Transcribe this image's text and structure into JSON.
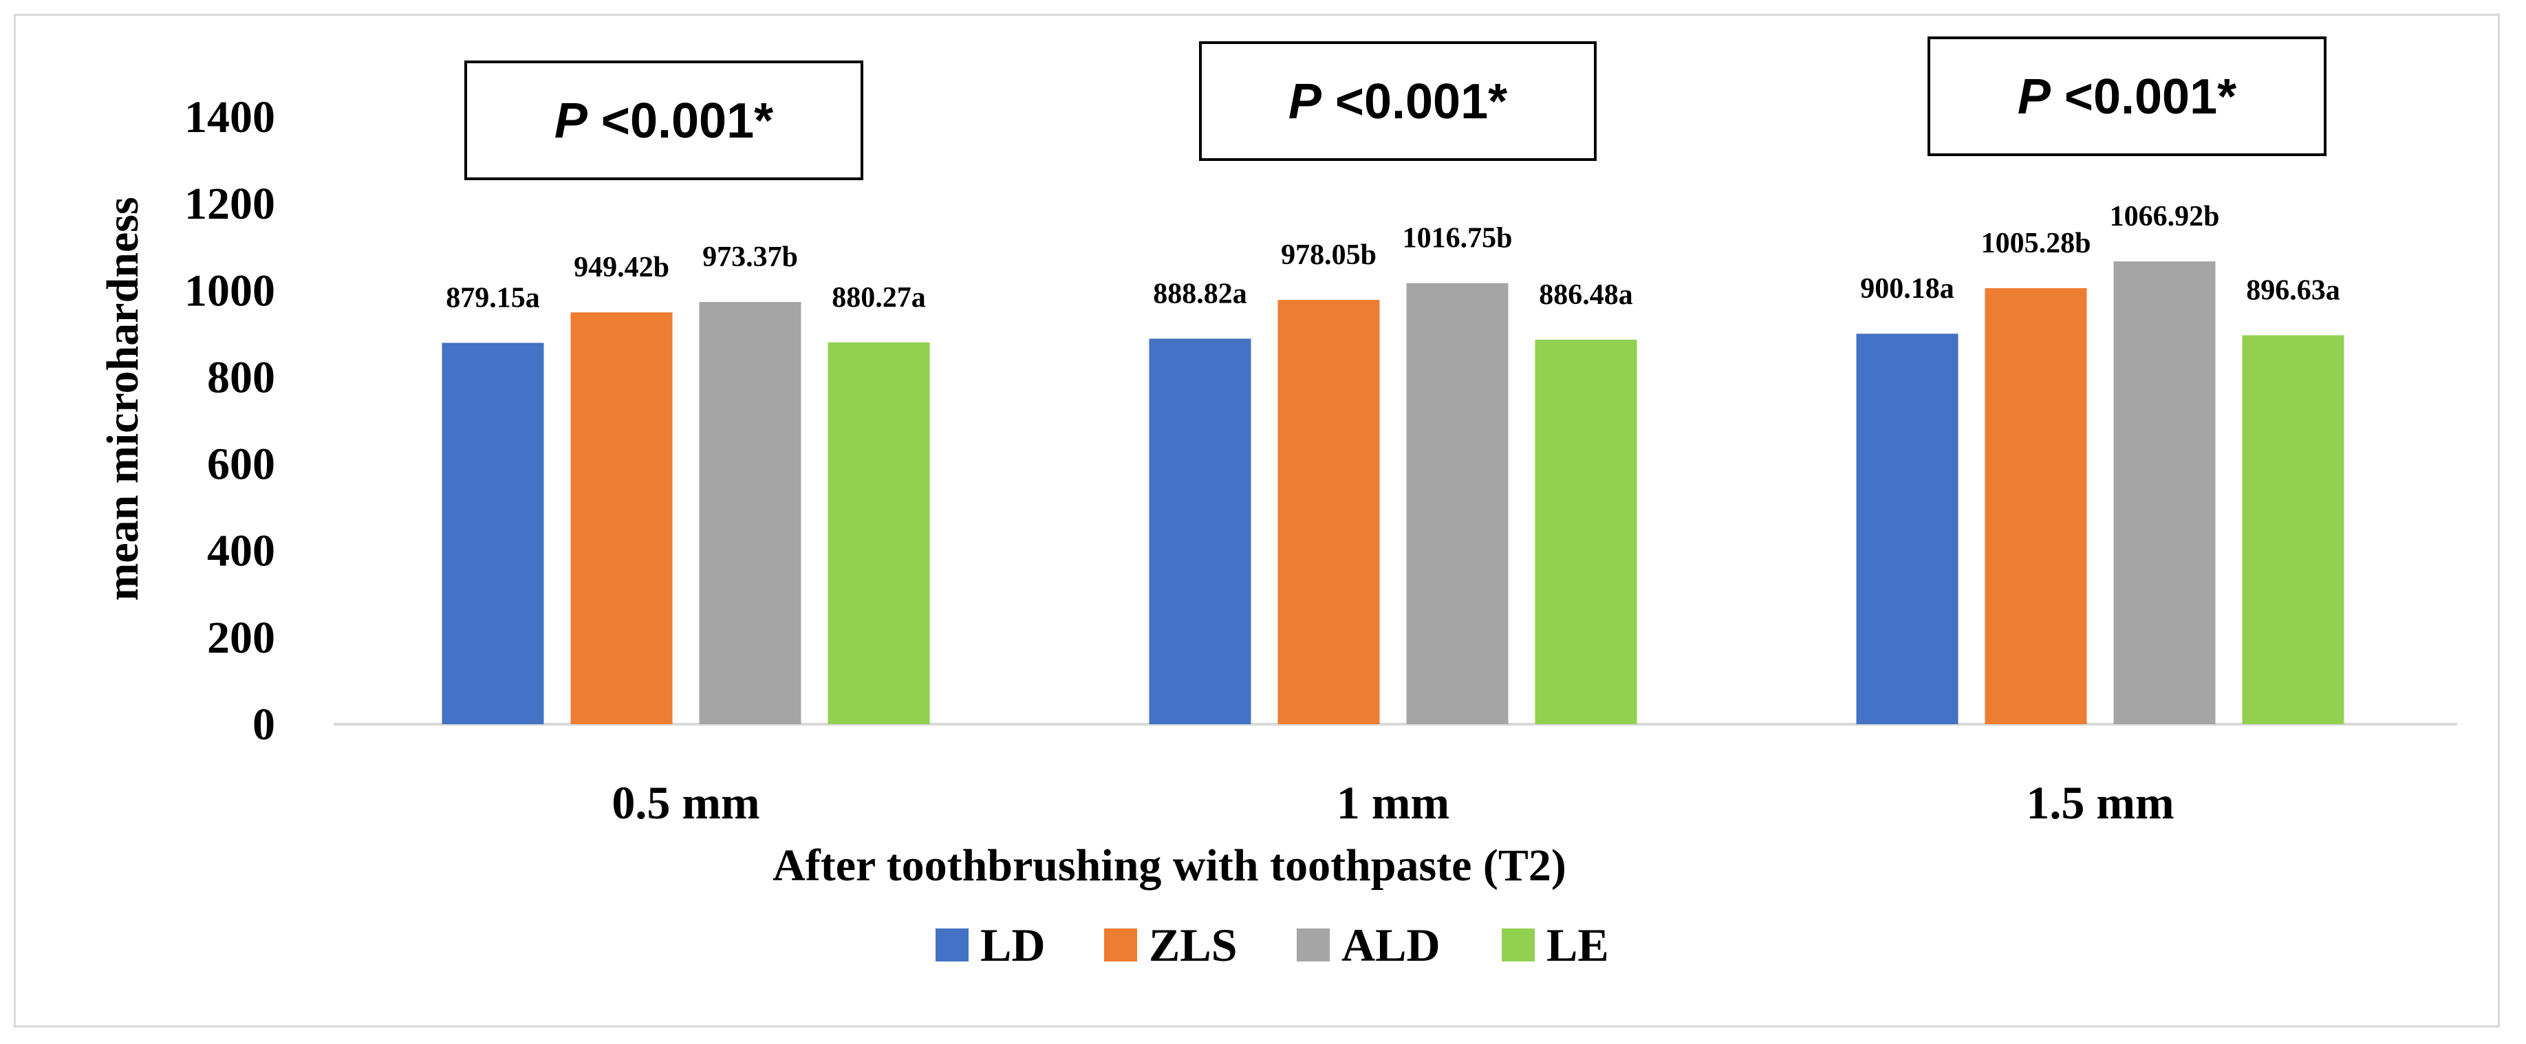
{
  "chart_data": {
    "type": "bar",
    "title": "",
    "xlabel": "After toothbrushing with toothpaste (T2)",
    "ylabel": "mean microhardness",
    "categories": [
      "0.5 mm",
      "1 mm",
      "1.5 mm"
    ],
    "ylim": [
      0,
      1400
    ],
    "yticks": [
      "0",
      "200",
      "400",
      "600",
      "800",
      "1000",
      "1200",
      "1400"
    ],
    "grid": false,
    "legend_position": "bottom",
    "series": [
      {
        "name": "LD",
        "color": "#4472C4",
        "values": [
          879.15,
          888.82,
          900.18
        ],
        "labels": [
          "879.15a",
          "888.82a",
          "900.18a"
        ]
      },
      {
        "name": "ZLS",
        "color": "#ED7D31",
        "values": [
          949.42,
          978.05,
          1005.28
        ],
        "labels": [
          "949.42b",
          "978.05b",
          "1005.28b"
        ]
      },
      {
        "name": "ALD",
        "color": "#A5A5A5",
        "values": [
          973.37,
          1016.75,
          1066.92
        ],
        "labels": [
          "973.37b",
          "1016.75b",
          "1066.92b"
        ]
      },
      {
        "name": "LE",
        "color": "#92D050",
        "values": [
          880.27,
          886.48,
          896.63
        ],
        "labels": [
          "880.27a",
          "886.48a",
          "896.63a"
        ]
      }
    ],
    "annotations": [
      {
        "category": "0.5 mm",
        "p_symbol": "P",
        "p_text": " <0.001*"
      },
      {
        "category": "1 mm",
        "p_symbol": "P",
        "p_text": " <0.001*"
      },
      {
        "category": "1.5 mm",
        "p_symbol": "P",
        "p_text": " <0.001*"
      }
    ]
  }
}
